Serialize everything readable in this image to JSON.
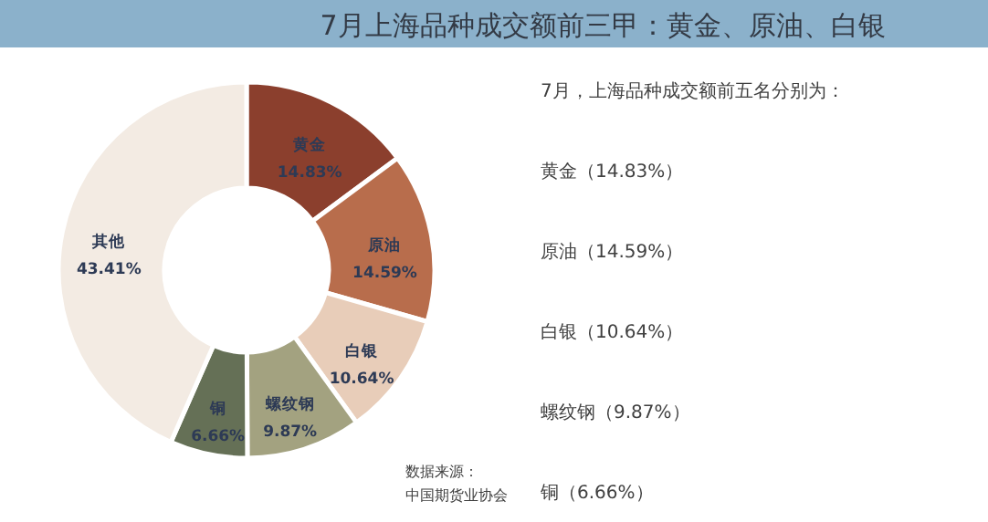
{
  "chart_data": {
    "type": "donut",
    "title": "7月上海品种成交额前三甲：黄金、原油、白银",
    "categories": [
      "黄金",
      "原油",
      "白银",
      "螺纹钢",
      "铜",
      "其他"
    ],
    "values": [
      14.83,
      14.59,
      10.64,
      9.87,
      6.66,
      43.41
    ],
    "value_labels": [
      "14.83%",
      "14.59%",
      "10.64%",
      "9.87%",
      "6.66%",
      "43.41%"
    ],
    "colors": [
      "#8b3f2d",
      "#b86d4c",
      "#e8cdb9",
      "#a3a280",
      "#657056",
      "#f3ebe3"
    ],
    "annotations": [
      "7月，上海品种成交额前五名分别为：",
      "黄金（14.83%）",
      "原油（14.59%）",
      "白银（10.64%）",
      "螺纹钢（9.87%）",
      "铜（6.66%）",
      "数据来源：",
      "中国期货业协会"
    ]
  }
}
